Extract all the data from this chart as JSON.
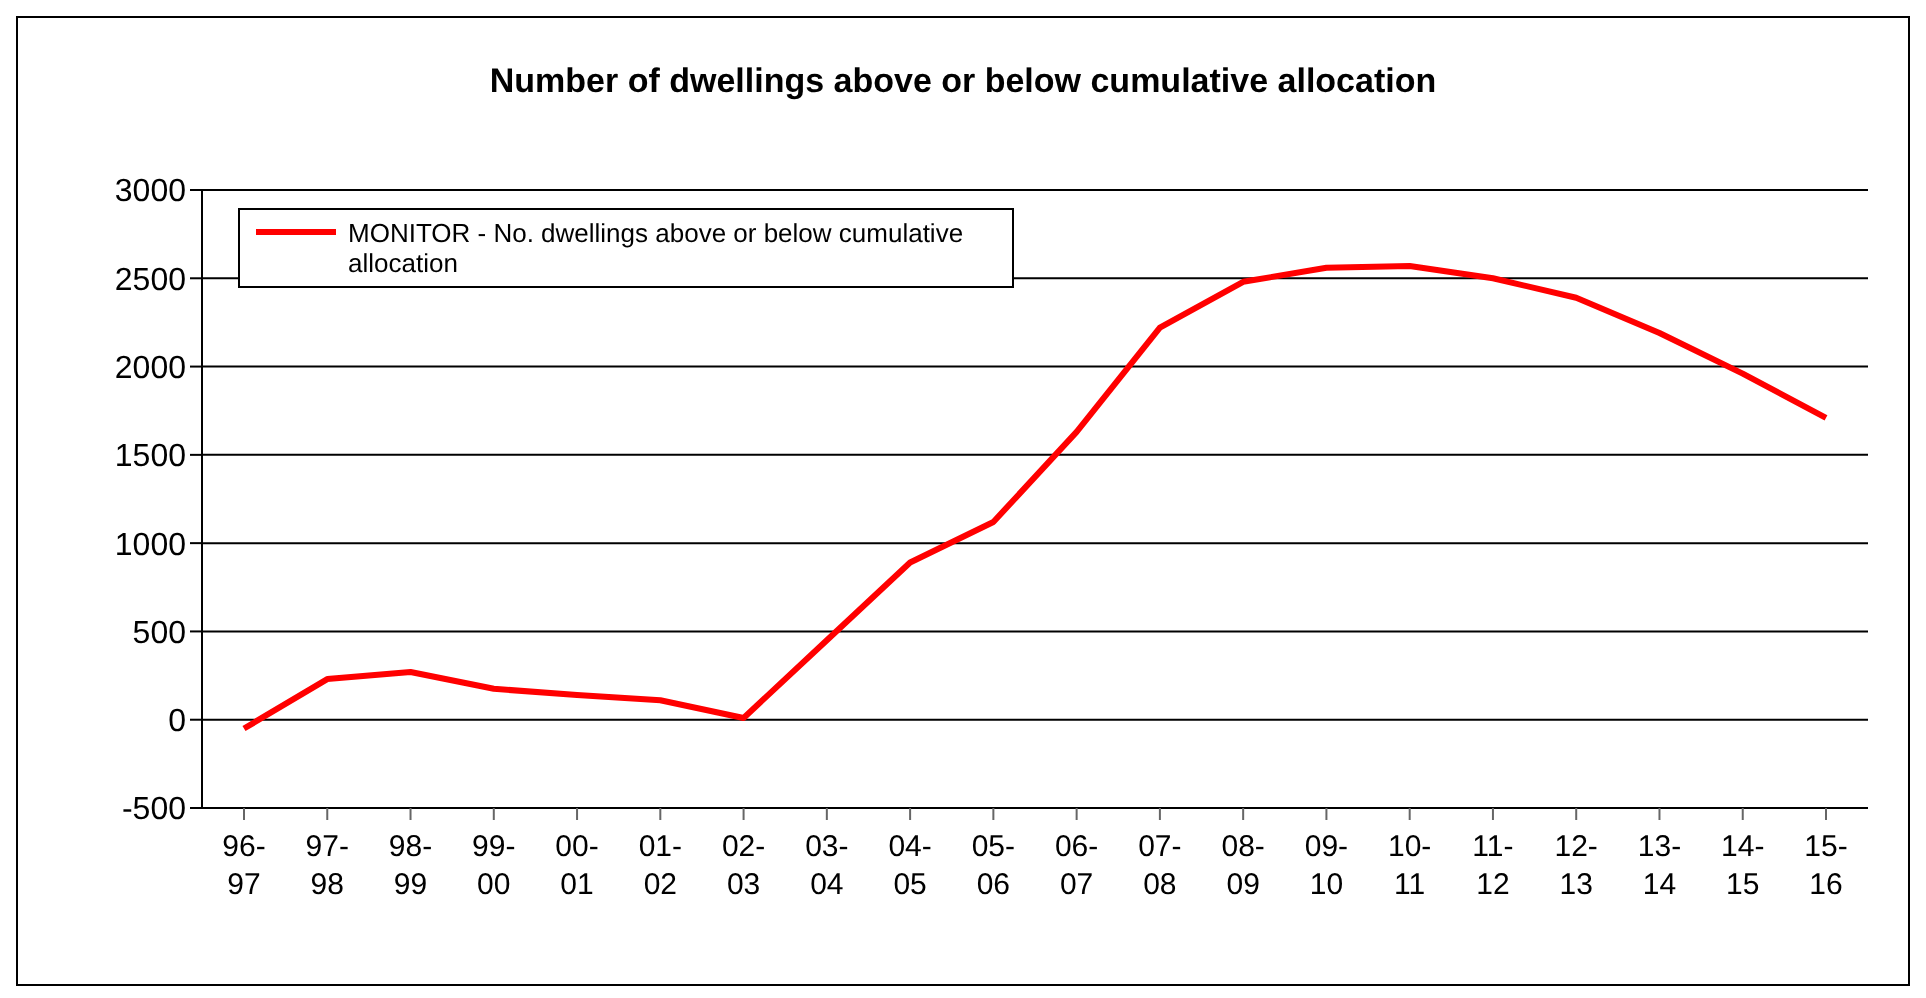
{
  "chart_data": {
    "type": "line",
    "title": "Number of dwellings above or below cumulative allocation",
    "categories": [
      "96-97",
      "97-98",
      "98-99",
      "99-00",
      "00-01",
      "01-02",
      "02-03",
      "03-04",
      "04-05",
      "05-06",
      "06-07",
      "07-08",
      "08-09",
      "09-10",
      "10-11",
      "11-12",
      "12-13",
      "13-14",
      "14-15",
      "15-16"
    ],
    "series": [
      {
        "name": "MONITOR - No. dwellings above or below cumulative allocation",
        "color": "#ff0000",
        "values": [
          -50,
          230,
          270,
          175,
          140,
          110,
          10,
          450,
          890,
          1120,
          1630,
          2220,
          2480,
          2560,
          2570,
          2500,
          2390,
          2190,
          1960,
          1710
        ]
      }
    ],
    "ylim": [
      -500,
      3000
    ],
    "yticks": [
      -500,
      0,
      500,
      1000,
      1500,
      2000,
      2500,
      3000
    ],
    "grid": "y",
    "legend": "top left",
    "marker": "none",
    "line_style": "solid"
  }
}
